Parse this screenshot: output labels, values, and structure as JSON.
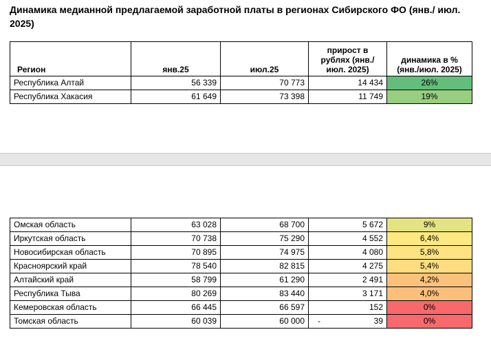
{
  "title": "Динамика медианной предлагаемой заработной платы в регионах Сибирского ФО (янв./ июл. 2025)",
  "header": [
    "Регион",
    "янв.25",
    "июл.25",
    "прирост в рублях (янв./ июл. 2025)",
    "динамика в % (янв./июл. 2025)"
  ],
  "table_top": {
    "rows": [
      {
        "cells": [
          "Республика Алтай",
          "56 339",
          "70 773",
          "14 434",
          "26%"
        ],
        "color": "#63be7b"
      },
      {
        "cells": [
          "Республика Хакасия",
          "61 649",
          "73 398",
          "11 749",
          "19%"
        ],
        "color": "#98ce7f"
      }
    ]
  },
  "table_bottom": {
    "rows": [
      {
        "cells": [
          "Омская область",
          "63 028",
          "68 700",
          "5 672",
          "9%"
        ],
        "color": "#e3e383"
      },
      {
        "cells": [
          "Иркутская область",
          "70 738",
          "75 290",
          "4 552",
          "6,4%"
        ],
        "color": "#fde981"
      },
      {
        "cells": [
          "Новосибирская область",
          "70 895",
          "74 975",
          "4 080",
          "5,8%"
        ],
        "color": "#fee382"
      },
      {
        "cells": [
          "Красноярский край",
          "78 540",
          "82 815",
          "4 275",
          "5,4%"
        ],
        "color": "#fedd81"
      },
      {
        "cells": [
          "Алтайский край",
          "58 799",
          "61 290",
          "2 491",
          "4,2%"
        ],
        "color": "#fcc27c"
      },
      {
        "cells": [
          "Республика Тыва",
          "80 269",
          "83 440",
          "3 171",
          "4,0%"
        ],
        "color": "#fcbf7b"
      },
      {
        "cells": [
          "Кемеровская область",
          "66 445",
          "66 597",
          "152",
          "0%"
        ],
        "color": "#f8696b"
      },
      {
        "cells": [
          "Томская область",
          "60 039",
          "60 000",
          {
            "sign": "-",
            "value": "39"
          },
          "0%"
        ],
        "color": "#f8696b"
      }
    ]
  }
}
